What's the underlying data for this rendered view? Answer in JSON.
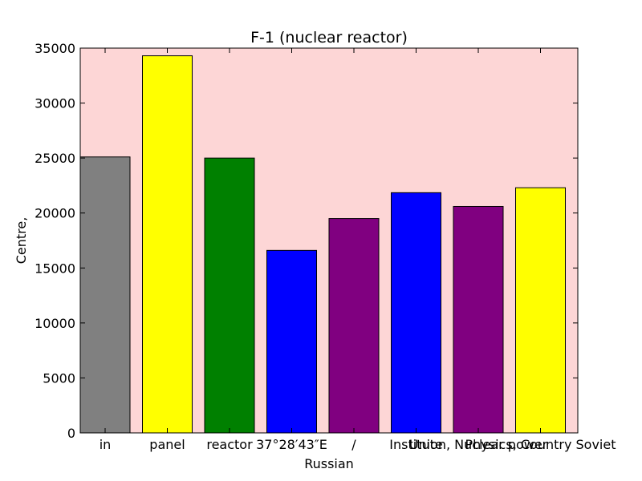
{
  "chart_data": {
    "type": "bar",
    "title": "F-1 (nuclear reactor)",
    "xlabel": "Russian",
    "ylabel": "Centre,",
    "ylim": [
      0,
      35000
    ],
    "yticks": [
      0,
      5000,
      10000,
      15000,
      20000,
      25000,
      30000,
      35000
    ],
    "categories": [
      "in",
      "panel",
      "reactor",
      "37°28′43″E",
      "/",
      "Institute",
      "Union, Nuclear power",
      "Physics, Country Soviet"
    ],
    "values": [
      25100,
      34300,
      25000,
      16600,
      19500,
      21850,
      20600,
      22300
    ],
    "colors": [
      "#808080",
      "#ffff00",
      "#008000",
      "#0000ff",
      "#800080",
      "#0000ff",
      "#800080",
      "#ffff00"
    ],
    "plot_background": "#fdd6d6",
    "grid": false,
    "legend": "none"
  }
}
